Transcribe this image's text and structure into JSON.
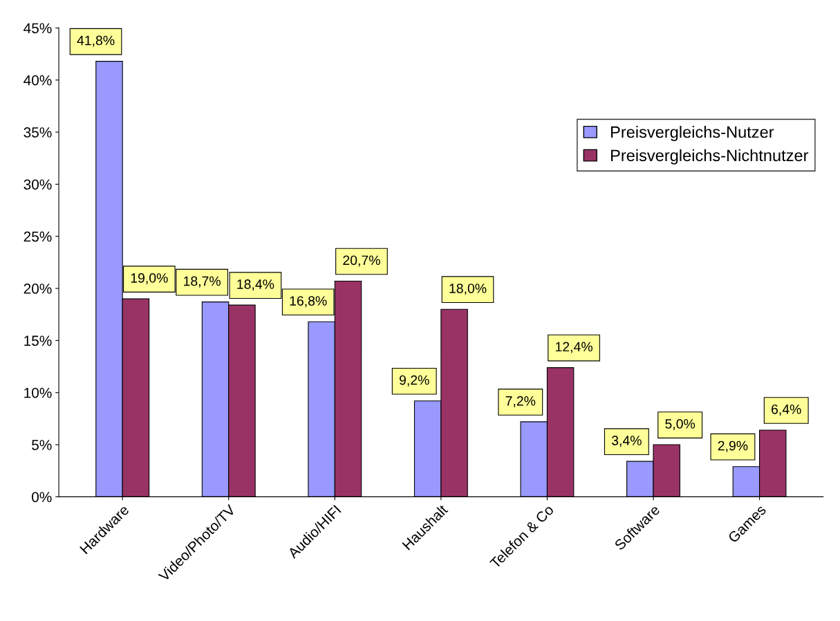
{
  "chart_data": {
    "type": "bar",
    "categories": [
      "Hardware",
      "Video/Photo/TV",
      "Audio/HIFI",
      "Haushalt",
      "Telefon & Co",
      "Software",
      "Games"
    ],
    "series": [
      {
        "name": "Preisvergleichs-Nutzer",
        "color": "#9999ff",
        "values": [
          41.8,
          18.7,
          16.8,
          9.2,
          7.2,
          3.4,
          2.9
        ],
        "value_labels": [
          "41,8%",
          "18,7%",
          "16,8%",
          "9,2%",
          "7,2%",
          "3,4%",
          "2,9%"
        ]
      },
      {
        "name": "Preisvergleichs-Nichtnutzer",
        "color": "#993366",
        "values": [
          19.0,
          18.4,
          20.7,
          18.0,
          12.4,
          5.0,
          6.4
        ],
        "value_labels": [
          "19,0%",
          "18,4%",
          "20,7%",
          "18,0%",
          "12,4%",
          "5,0%",
          "6,4%"
        ]
      }
    ],
    "ylim": [
      0,
      45
    ],
    "yticks": [
      {
        "value": 0,
        "label": "0%"
      },
      {
        "value": 5,
        "label": "5%"
      },
      {
        "value": 10,
        "label": "10%"
      },
      {
        "value": 15,
        "label": "15%"
      },
      {
        "value": 20,
        "label": "20%"
      },
      {
        "value": 25,
        "label": "25%"
      },
      {
        "value": 30,
        "label": "30%"
      },
      {
        "value": 35,
        "label": "35%"
      },
      {
        "value": 40,
        "label": "40%"
      },
      {
        "value": 45,
        "label": "45%"
      }
    ],
    "grid": false,
    "legend": "right"
  }
}
